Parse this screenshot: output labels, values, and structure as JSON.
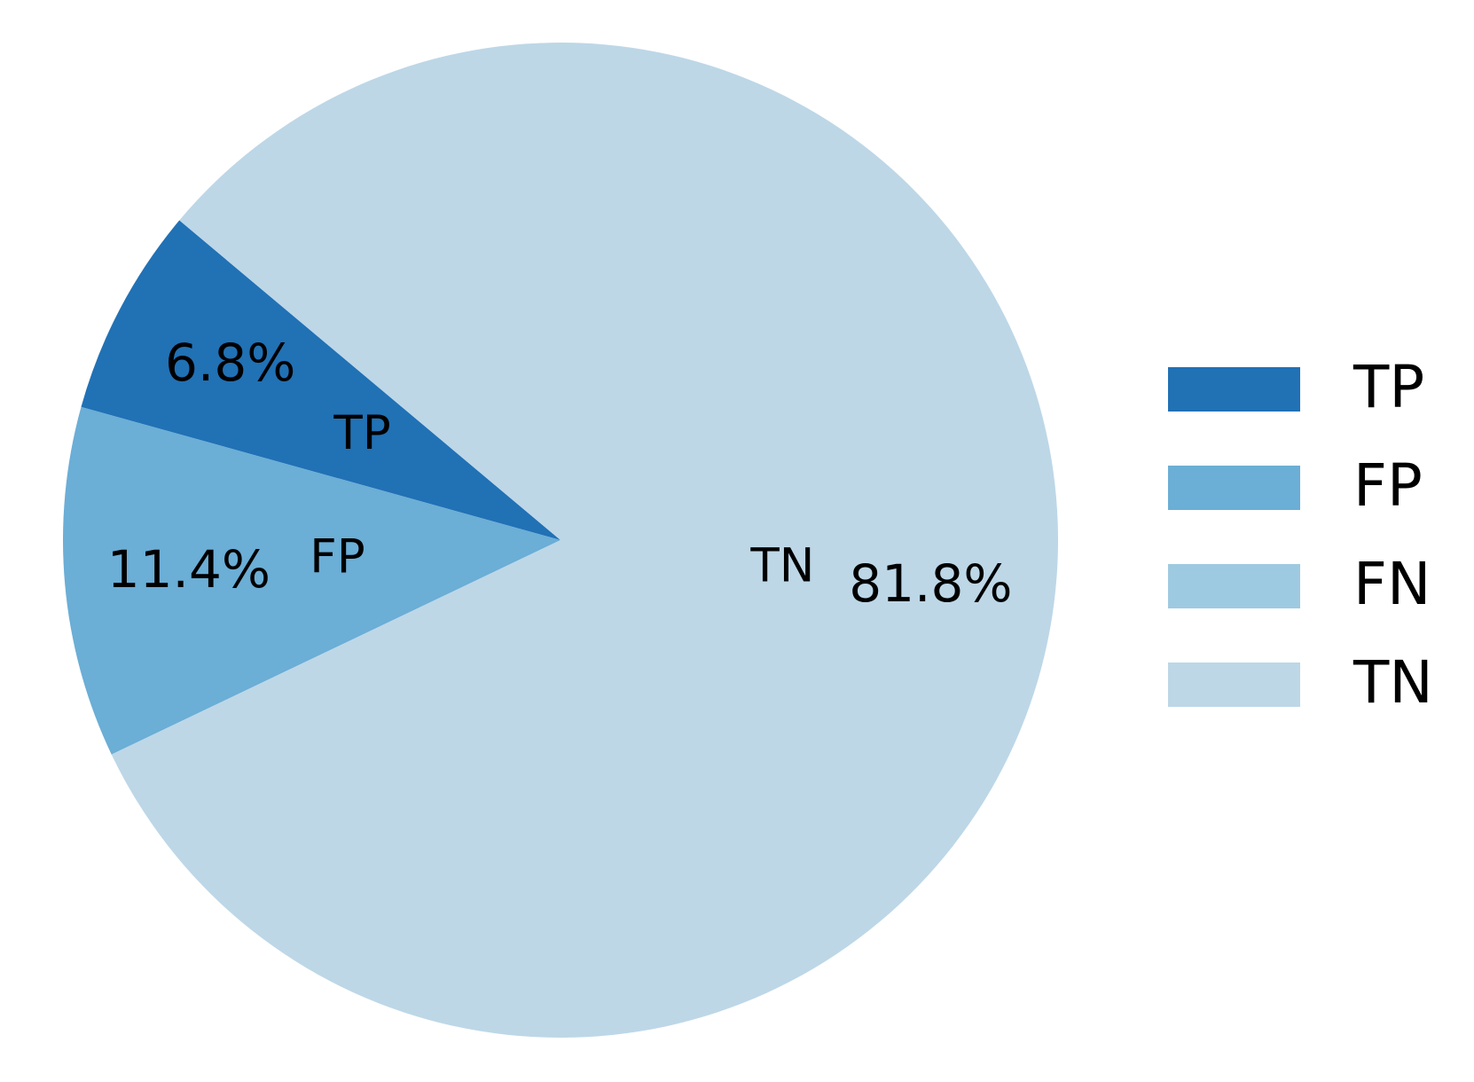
{
  "chart_data": {
    "type": "pie",
    "categories": [
      "TP",
      "FP",
      "FN",
      "TN"
    ],
    "values": [
      6.8,
      11.4,
      0,
      81.8
    ],
    "value_labels": [
      "6.8%",
      "11.4%",
      null,
      "81.8%"
    ],
    "colors": [
      "#2171b5",
      "#6baed6",
      "#9ecae1",
      "#bdd7e7"
    ],
    "startangle": 140,
    "legend": "right"
  }
}
